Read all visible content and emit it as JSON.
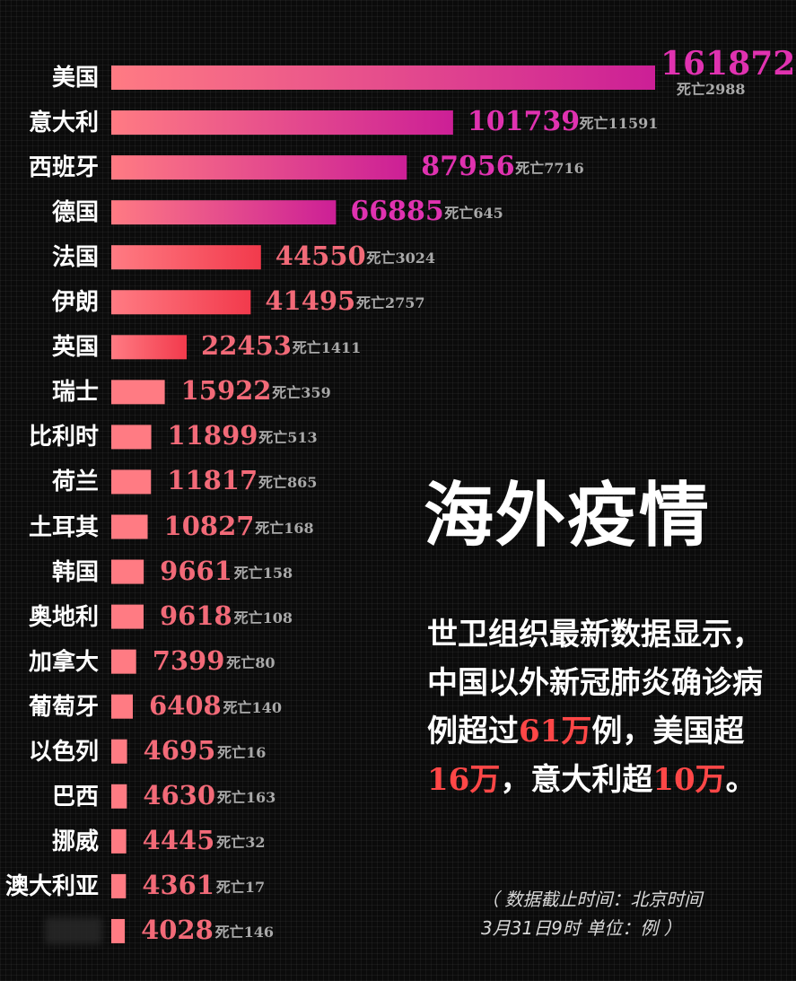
{
  "chart_data": {
    "type": "bar",
    "orientation": "horizontal",
    "categories": [
      "美国",
      "意大利",
      "西班牙",
      "德国",
      "法国",
      "伊朗",
      "英国",
      "瑞士",
      "比利时",
      "荷兰",
      "土耳其",
      "韩国",
      "奥地利",
      "加拿大",
      "葡萄牙",
      "以色列",
      "巴西",
      "挪威",
      "澳大利亚",
      ""
    ],
    "values": [
      161872,
      101739,
      87956,
      66885,
      44550,
      41495,
      22453,
      15922,
      11899,
      11817,
      10827,
      9661,
      9618,
      7399,
      6408,
      4695,
      4630,
      4445,
      4361,
      4028
    ],
    "deaths": [
      "死亡2988",
      "死亡11591",
      "死亡7716",
      "死亡645",
      "死亡3024",
      "死亡2757",
      "死亡1411",
      "死亡359",
      "死亡513",
      "死亡865",
      "死亡168",
      "死亡158",
      "死亡108",
      "死亡80",
      "死亡140",
      "死亡16",
      "死亡163",
      "死亡32",
      "死亡17",
      "死亡146"
    ],
    "colors": {
      "light_bar_start": "#ff7b83",
      "magenta_end": "#cc1f96",
      "red_end": "#f23a4c",
      "value_magenta": "#e032b0",
      "value_red": "#f26a78",
      "death_gray": "#a9a9a9"
    }
  },
  "headline": "海外疫情",
  "summary": {
    "p1": "世卫组织最新数据显示，中国以外新冠肺炎确诊病例超过",
    "n1": "61万",
    "p2": "例，美国超",
    "n2": "16万",
    "p3": "，意大利超",
    "n3": "10万",
    "p4": "。"
  },
  "note": {
    "line1": "（ 数据截止时间：北京时间",
    "line2": "3月31日9时  单位：例 ）"
  }
}
